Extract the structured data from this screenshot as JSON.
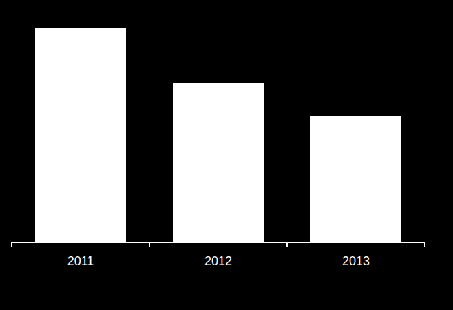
{
  "chart_data": {
    "type": "bar",
    "categories": [
      "2011",
      "2012",
      "2013"
    ],
    "values": [
      100,
      74,
      59
    ],
    "color": "#ffffff",
    "ylim": [
      0,
      100
    ],
    "tick_labels": "x",
    "grid": false
  }
}
